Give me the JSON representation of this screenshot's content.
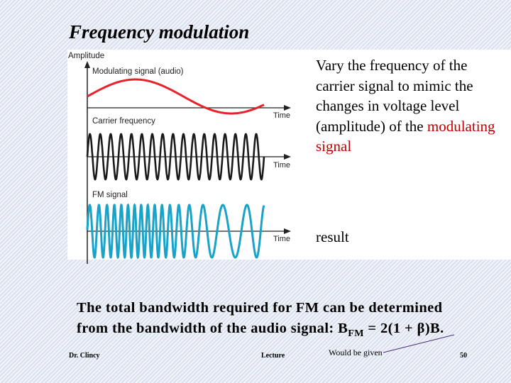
{
  "slide": {
    "title": "Frequency modulation",
    "description": {
      "part1": "Vary the frequency of the carrier signal to mimic the changes in voltage level (amplitude) of the ",
      "highlight": "modulating signal"
    },
    "result_label": "result",
    "bandwidth": {
      "line1": "The total bandwidth required for FM can be determined",
      "line2_prefix": "from the bandwidth of the audio signal: B",
      "subscript": "FM",
      "line2_suffix": " = 2(1 + β)B."
    },
    "footer": {
      "author": "Dr. Clincy",
      "center": "Lecture",
      "page_number": "50"
    },
    "annotation": "Would be given"
  },
  "diagram": {
    "axis_label": "Amplitude",
    "modulating_label": "Modulating signal (audio)",
    "carrier_label": "Carrier frequency",
    "fm_label": "FM signal",
    "time_label": "Time",
    "colors": {
      "modulating": "#e8222a",
      "carrier": "#1a1a1a",
      "fm": "#1aa3c8",
      "axis": "#222222"
    }
  }
}
